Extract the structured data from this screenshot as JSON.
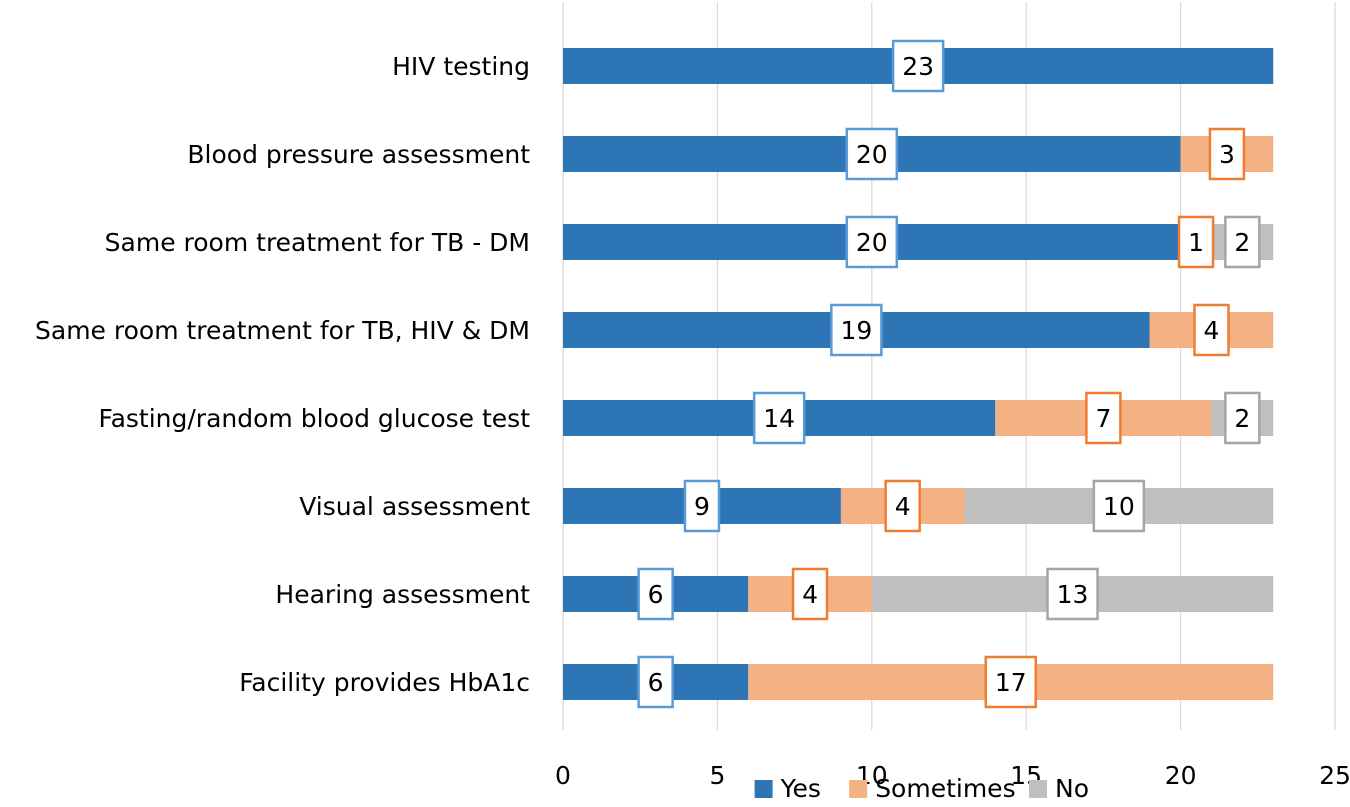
{
  "chart_data": {
    "type": "bar",
    "orientation": "horizontal",
    "stacked": true,
    "title": "",
    "xlabel": "",
    "ylabel": "",
    "xlim": [
      0,
      25
    ],
    "x_ticks": [
      0,
      5,
      10,
      15,
      20,
      25
    ],
    "grid": "vertical",
    "legend_position": "bottom",
    "categories": [
      "HIV testing",
      "Blood pressure assessment",
      "Same room treatment for TB - DM",
      "Same room treatment for TB, HIV & DM",
      "Fasting/random blood glucose test",
      "Visual assessment",
      "Hearing assessment",
      "Facility provides HbA1c"
    ],
    "series": [
      {
        "name": "Yes",
        "color": "#2e75b6",
        "values": [
          23,
          20,
          20,
          19,
          14,
          9,
          6,
          6
        ]
      },
      {
        "name": "Sometimes",
        "color": "#f4b183",
        "values": [
          0,
          3,
          1,
          4,
          7,
          4,
          4,
          17
        ]
      },
      {
        "name": "No",
        "color": "#bfbfbf",
        "values": [
          0,
          0,
          2,
          0,
          2,
          10,
          13,
          0
        ]
      }
    ],
    "label_border_colors": [
      "#5b9bd5",
      "#ed7d31",
      "#a5a5a5"
    ]
  }
}
